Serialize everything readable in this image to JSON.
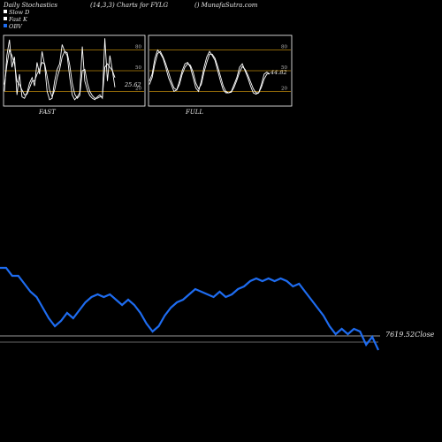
{
  "header": {
    "title": "Daily Stochastics",
    "params": "(14,3,3) Charts for FYLG",
    "site": "() MunafaSutra.com"
  },
  "legend": [
    {
      "label": "Slow  D",
      "color": "#ffffff"
    },
    {
      "label": "Fast K",
      "color": "#ffffff"
    },
    {
      "label": "OBV",
      "color": "#1e6cf0"
    }
  ],
  "colors": {
    "background": "#000000",
    "obv_line": "#1e6cf0",
    "threshold_line": "#b8860b",
    "stoch_line": "#ffffff",
    "close_line": "#cccccc"
  },
  "chart_data": [
    {
      "panel": "FAST",
      "type": "line",
      "title": "FAST",
      "ylim": [
        0,
        100
      ],
      "yticks": [
        80,
        50,
        20
      ],
      "threshold_lines": [
        80,
        50,
        20
      ],
      "value_label": "25.62",
      "series": [
        {
          "values": [
            20,
            72,
            95,
            55,
            70,
            15,
            45,
            12,
            10,
            18,
            32,
            40,
            28,
            62,
            45,
            78,
            58,
            20,
            8,
            10,
            35,
            52,
            60,
            88,
            78,
            72,
            40,
            15,
            8,
            12,
            18,
            85,
            35,
            22,
            14,
            10,
            8,
            12,
            15,
            10,
            97,
            35,
            72,
            50,
            26
          ]
        },
        {
          "values": [
            30,
            58,
            80,
            72,
            60,
            35,
            30,
            22,
            15,
            16,
            25,
            35,
            35,
            45,
            52,
            62,
            60,
            42,
            22,
            12,
            22,
            40,
            52,
            70,
            78,
            76,
            58,
            32,
            16,
            10,
            14,
            50,
            52,
            32,
            20,
            14,
            10,
            10,
            12,
            12,
            55,
            60,
            55,
            50,
            40
          ]
        }
      ]
    },
    {
      "panel": "FULL",
      "type": "line",
      "title": "FULL",
      "ylim": [
        0,
        100
      ],
      "yticks": [
        80,
        50,
        20
      ],
      "threshold_lines": [
        80,
        50,
        20
      ],
      "value_label": "44.82",
      "series": [
        {
          "values": [
            35,
            45,
            68,
            80,
            75,
            68,
            55,
            40,
            30,
            20,
            22,
            35,
            50,
            60,
            62,
            55,
            40,
            25,
            20,
            35,
            55,
            70,
            78,
            72,
            65,
            50,
            35,
            22,
            18,
            18,
            20,
            30,
            40,
            55,
            60,
            50,
            40,
            28,
            18,
            16,
            18,
            30,
            45,
            48,
            45
          ]
        },
        {
          "values": [
            30,
            40,
            60,
            75,
            78,
            70,
            60,
            48,
            35,
            25,
            22,
            30,
            45,
            55,
            60,
            58,
            48,
            32,
            24,
            30,
            48,
            62,
            74,
            74,
            68,
            56,
            42,
            28,
            20,
            18,
            19,
            26,
            36,
            48,
            56,
            52,
            44,
            34,
            24,
            18,
            18,
            26,
            38,
            45,
            46
          ]
        }
      ]
    },
    {
      "panel": "OBV",
      "type": "line",
      "title": "",
      "close_label": "7619.52Close",
      "series": [
        {
          "name": "OBV",
          "values": [
            49,
            49,
            46,
            46,
            43,
            40,
            38,
            34,
            30,
            27,
            29,
            32,
            30,
            33,
            36,
            38,
            39,
            38,
            39,
            37,
            35,
            37,
            35,
            32,
            28,
            25,
            27,
            31,
            34,
            36,
            37,
            39,
            41,
            40,
            39,
            38,
            40,
            38,
            39,
            41,
            42,
            44,
            45,
            44,
            45,
            44,
            45,
            44,
            42,
            43,
            40,
            37,
            34,
            31,
            27,
            24,
            26,
            24,
            26,
            25,
            20,
            23,
            18
          ]
        },
        {
          "name": "Close",
          "values": [
            21,
            21,
            21,
            21,
            21,
            21,
            21,
            21,
            21,
            21,
            21,
            21,
            21,
            21,
            21,
            21,
            21,
            21,
            21,
            21,
            21,
            21,
            21,
            21,
            21,
            21,
            21,
            21,
            21,
            21,
            21,
            21,
            21,
            21,
            21,
            21,
            21,
            21,
            21,
            21,
            21,
            21,
            21,
            21,
            21,
            21,
            21,
            21,
            21,
            21,
            21,
            21,
            21,
            21,
            21,
            21,
            21,
            21,
            21,
            21,
            21,
            21,
            21
          ]
        }
      ]
    }
  ]
}
